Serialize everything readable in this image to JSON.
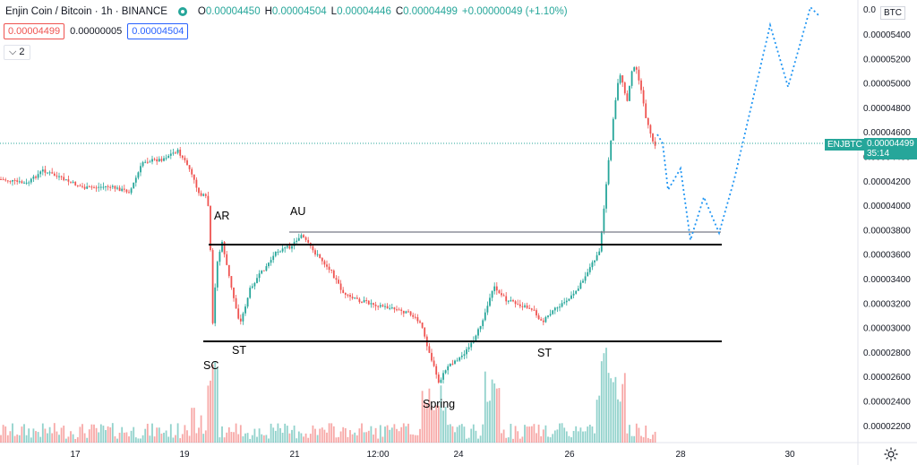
{
  "legend": {
    "title": "Enjin Coin / Bitcoin · 1h · BINANCE",
    "o_key": "O",
    "o_val": "0.00004450",
    "h_key": "H",
    "h_val": "0.00004504",
    "l_key": "L",
    "l_val": "0.00004446",
    "c_key": "C",
    "c_val": "0.00004499",
    "change": "+0.00000049 (+1.10%)"
  },
  "price_boxes": {
    "sell": "0.00004499",
    "spread": "0.00000005",
    "buy": "0.00004504"
  },
  "layers_button": "⌵ 2",
  "price_scale": {
    "currency_tag": "BTC",
    "top_partial": "0.0",
    "ticks": [
      "0.00005400",
      "0.00005200",
      "0.00005000",
      "0.00004800",
      "0.00004600",
      "0.00004400",
      "0.00004200",
      "0.00004000",
      "0.00003800",
      "0.00003600",
      "0.00003400",
      "0.00003200",
      "0.00003000",
      "0.00002800",
      "0.00002600",
      "0.00002400",
      "0.00002200"
    ],
    "symbol_tag": "ENJBTC",
    "current_price": "0.00004499",
    "countdown": "35:14"
  },
  "time_scale": {
    "ticks": [
      "17",
      "19",
      "21",
      "12:00",
      "24",
      "26",
      "28",
      "30"
    ]
  },
  "annotations": {
    "sc": "SC",
    "ar": "AR",
    "st1": "ST",
    "au": "AU",
    "spring": "Spring",
    "st2": "ST"
  },
  "colors": {
    "up": "#26a69a",
    "down": "#ef5350",
    "projection": "#2196f3",
    "last_price": "#26a69a"
  },
  "icons": {
    "visibility": "eye-icon",
    "settings": "gear-icon"
  }
}
